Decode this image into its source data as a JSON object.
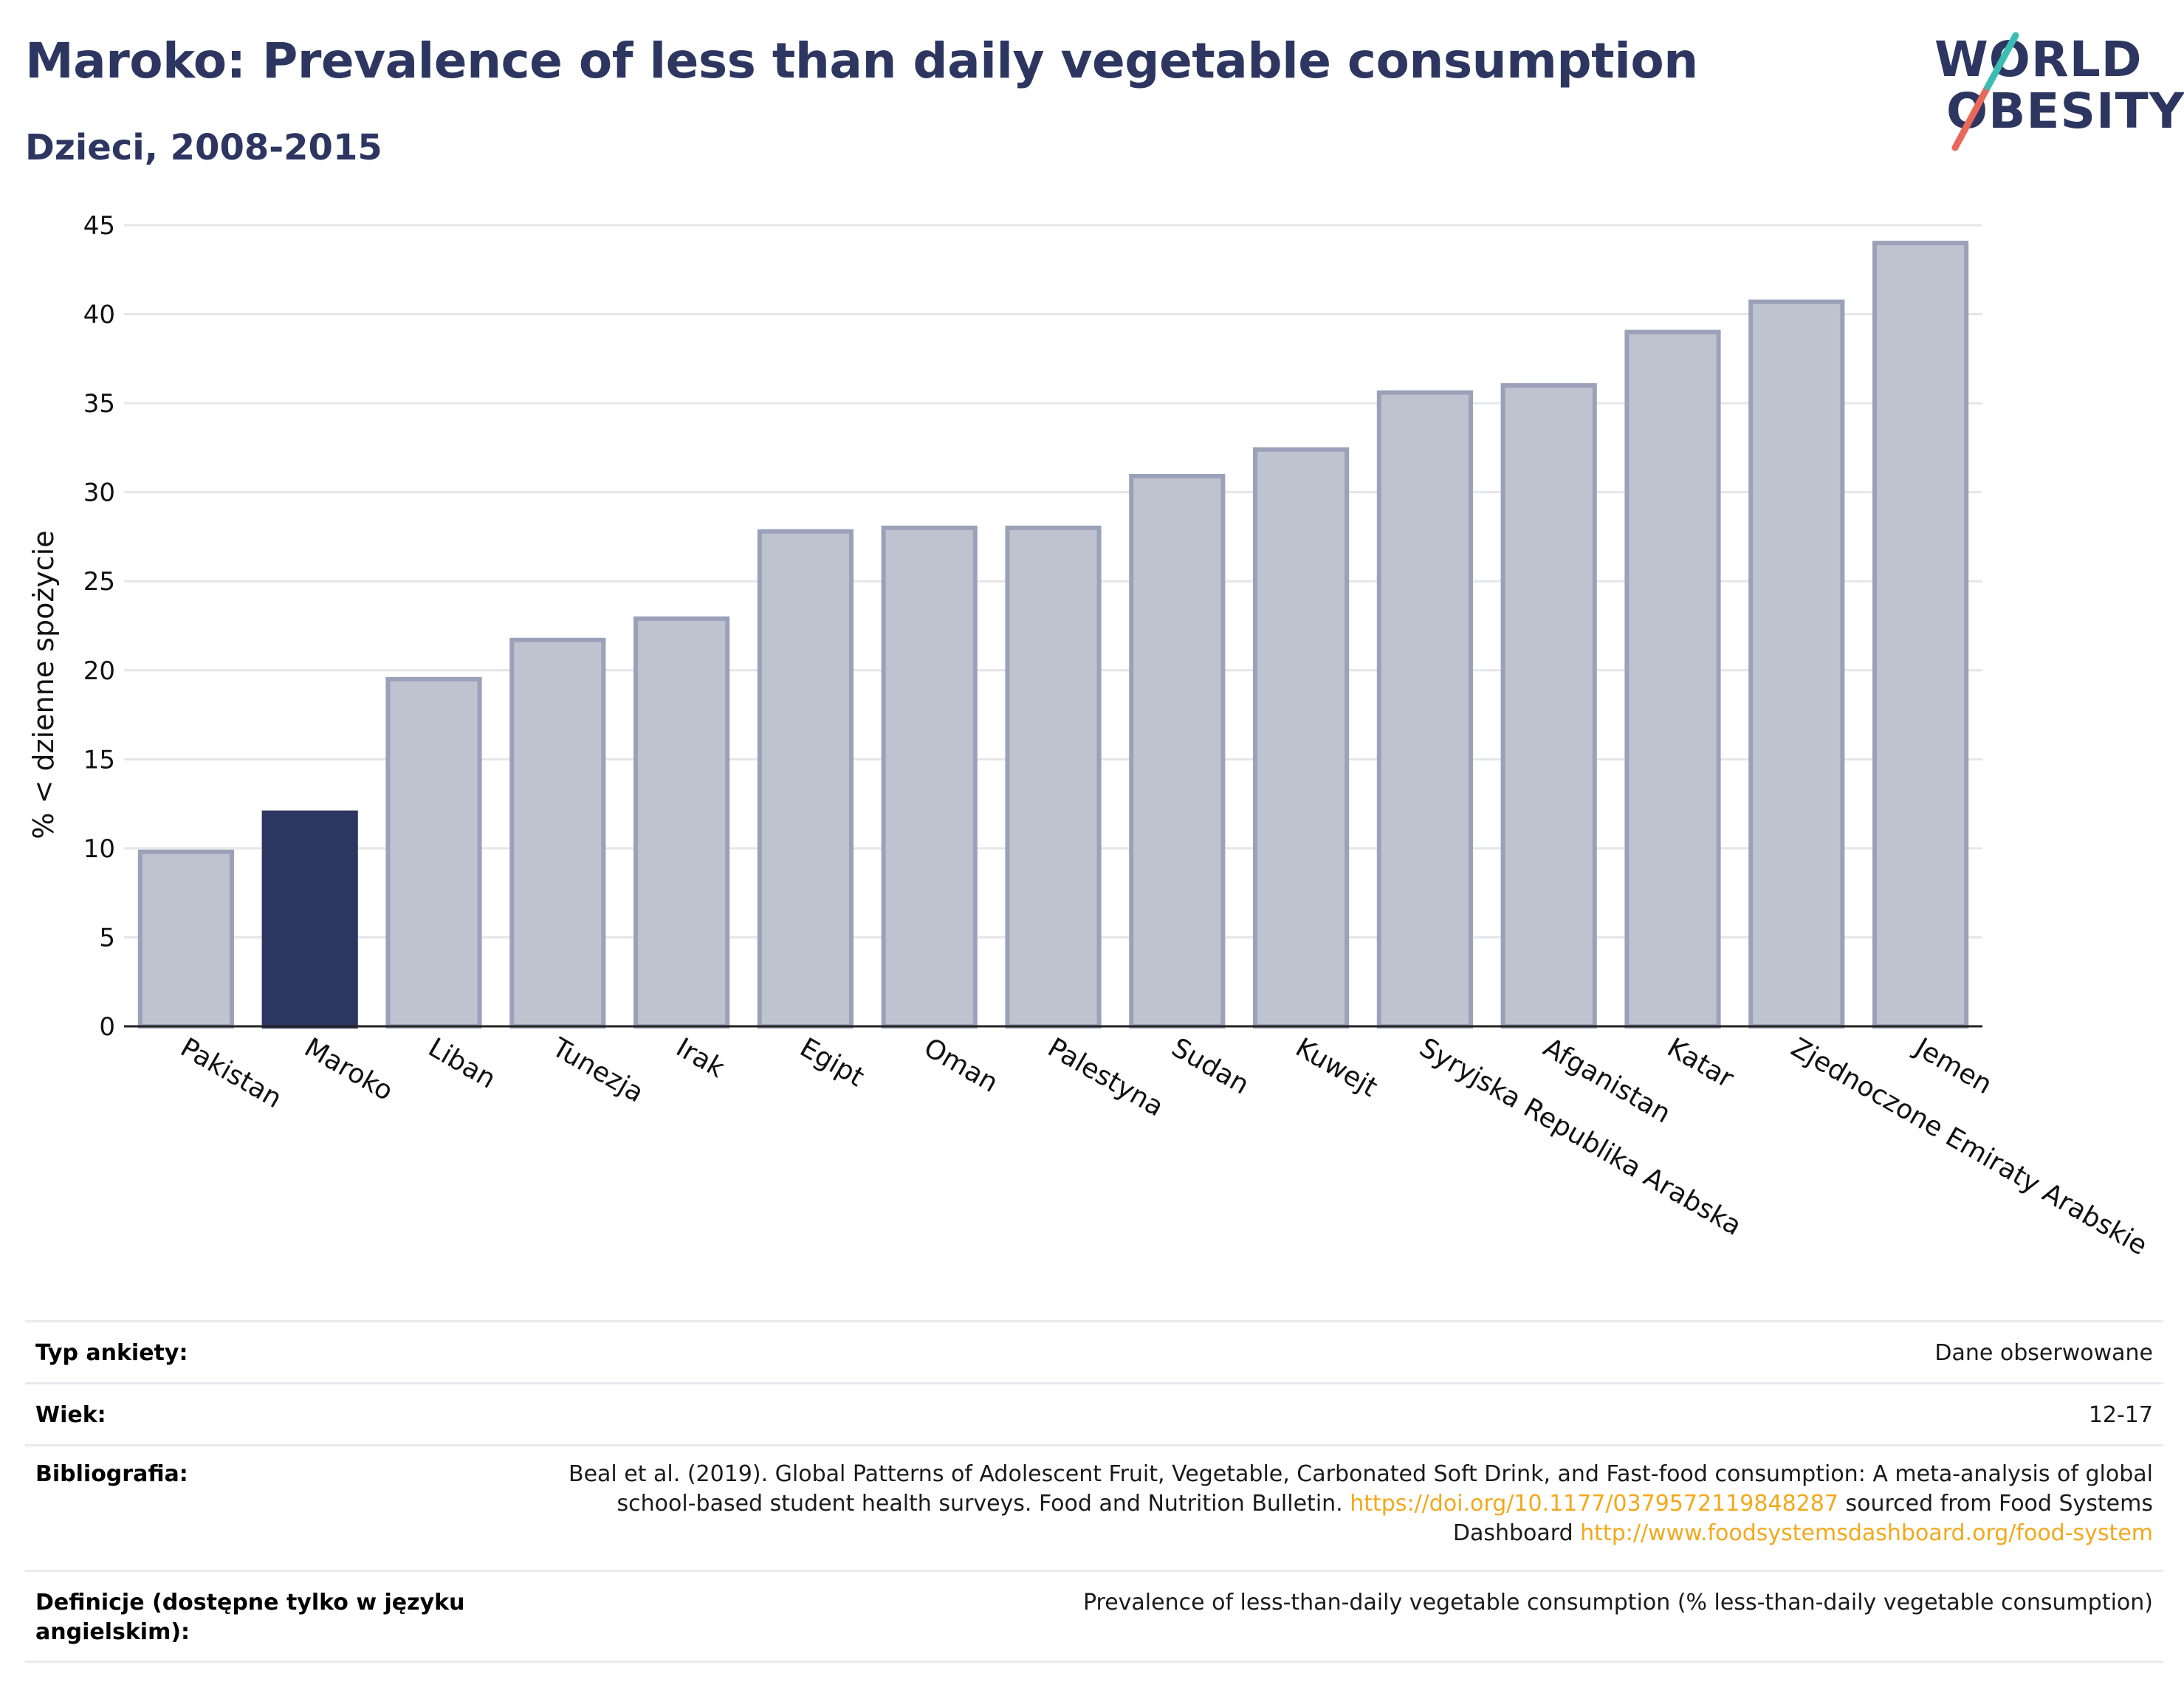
{
  "header": {
    "title": "Maroko: Prevalence of less than daily vegetable consumption",
    "subtitle": "Dzieci, 2008-2015"
  },
  "logo": {
    "line1": "WORLD",
    "line2": "OBESITY"
  },
  "colors": {
    "highlight": "#2d3660",
    "bar": "#bfc3d0",
    "bar_stroke": "#9aa1b8",
    "link": "#f3a81b"
  },
  "chart_data": {
    "type": "bar",
    "categories": [
      "Pakistan",
      "Maroko",
      "Liban",
      "Tunezja",
      "Irak",
      "Egipt",
      "Oman",
      "Palestyna",
      "Sudan",
      "Kuwejt",
      "Syryjska Republika Arabska",
      "Afganistan",
      "Katar",
      "Zjednoczone Emiraty Arabskie",
      "Jemen"
    ],
    "values": [
      9.8,
      12.0,
      19.5,
      21.7,
      22.9,
      27.8,
      28.0,
      28.0,
      30.9,
      32.4,
      35.6,
      36.0,
      39.0,
      40.7,
      44.0
    ],
    "highlight": "Maroko",
    "ylabel": "% < dzienne spożycie",
    "xlabel": "",
    "ylim": [
      0,
      45
    ],
    "yticks": [
      0,
      5,
      10,
      15,
      20,
      25,
      30,
      35,
      40,
      45
    ],
    "grid": true
  },
  "footer": {
    "rows": [
      {
        "label": "Typ ankiety:",
        "value": "Dane obserwowane"
      },
      {
        "label": "Wiek:",
        "value": "12-17"
      },
      {
        "label": "Bibliografia:",
        "value_pre": "Beal et al. (2019). Global Patterns of Adolescent Fruit, Vegetable, Carbonated Soft Drink, and Fast-food consumption: A meta-analysis of global school-based student health surveys. Food and Nutrition Bulletin. ",
        "link1": "https://doi.org/10.1177/0379572119848287",
        "value_mid": " sourced from Food Systems Dashboard ",
        "link2": "http://www.foodsystemsdashboard.org/food-system"
      },
      {
        "label": "Definicje (dostępne tylko w języku angielskim):",
        "value": "Prevalence of less-than-daily vegetable consumption (% less-than-daily vegetable consumption)"
      }
    ]
  }
}
